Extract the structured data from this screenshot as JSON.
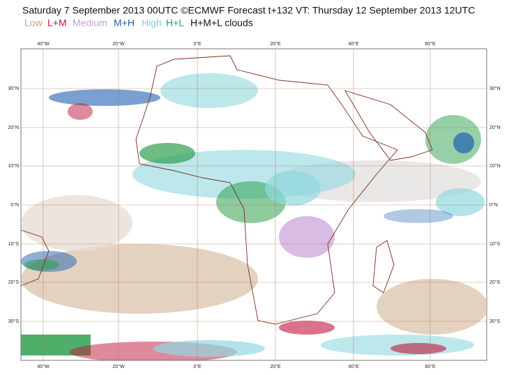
{
  "map": {
    "title": "Saturday 7 September 2013 00UTC ©ECMWF Forecast t+132 VT: Thursday 12 September 2013 12UTC",
    "legend": [
      {
        "label": "Low",
        "color": "#c8a080"
      },
      {
        "label": "L+M",
        "color": "#c0143c"
      },
      {
        "label": "Medium",
        "color": "#c8a0d8"
      },
      {
        "label": "M+H",
        "color": "#2060b0"
      },
      {
        "label": "High",
        "color": "#80d0d8"
      },
      {
        "label": "H+L",
        "color": "#30a050"
      },
      {
        "label": "H+M+L clouds",
        "color": "#111111"
      }
    ],
    "lon_labels": [
      "40°W",
      "20°W",
      "0°E",
      "20°E",
      "40°E",
      "60°E"
    ],
    "lat_labels": [
      "30°N",
      "20°N",
      "10°N",
      "0°N",
      "10°S",
      "20°S",
      "30°S"
    ]
  }
}
